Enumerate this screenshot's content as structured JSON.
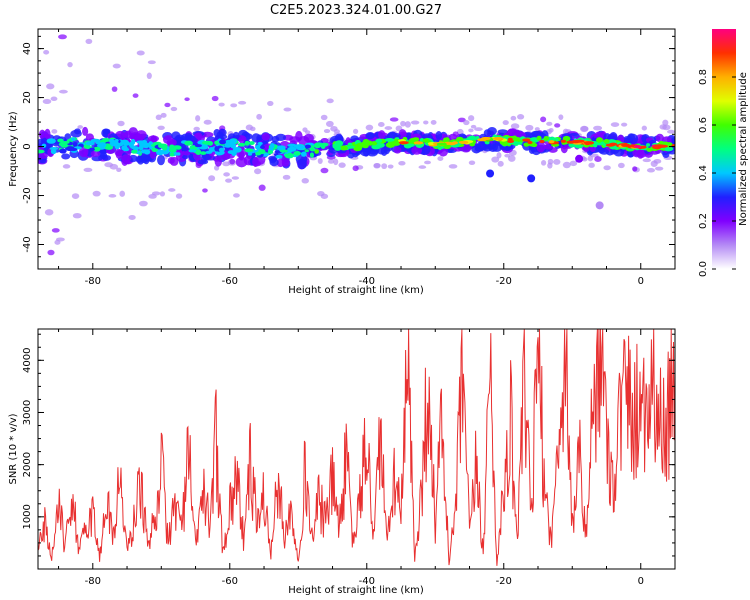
{
  "title": "C2E5.2023.324.01.00.G27",
  "chart_data": [
    {
      "type": "heatmap",
      "xlabel": "Height of straight line (km)",
      "ylabel": "Frequency (Hz)",
      "xlim": [
        -88,
        5
      ],
      "ylim": [
        -50,
        48
      ],
      "xticks": [
        -80,
        -60,
        -40,
        -20,
        0
      ],
      "yticks": [
        -40,
        -20,
        0,
        20,
        40
      ],
      "grid": false,
      "colormap": "rainbow (white-purple-blue-cyan-green-yellow-red-magenta)",
      "ridge": {
        "x": [
          -88,
          -80,
          -70,
          -60,
          -52,
          -48,
          -40,
          -35,
          -30,
          -25,
          -22,
          -15,
          -10,
          -5,
          0,
          5
        ],
        "y": [
          0,
          1,
          -1,
          0,
          -2,
          -1,
          1,
          2,
          1,
          2,
          3,
          2,
          2,
          1,
          0,
          0
        ]
      },
      "colorbar": {
        "label": "Normalized spectral amplitude",
        "range": [
          0,
          1
        ],
        "ticks": [
          "0.0",
          "0.2",
          "0.4",
          "0.6",
          "0.8"
        ],
        "colors": [
          "#ffffff",
          "#b48af5",
          "#8000ff",
          "#2020ff",
          "#00c8ff",
          "#00ff80",
          "#40ff00",
          "#e0ff00",
          "#ffb000",
          "#ff3000",
          "#ff0080"
        ]
      }
    },
    {
      "type": "line",
      "xlabel": "Height of straight line (km)",
      "ylabel": "SNR (10 * v/v)",
      "xlim": [
        -88,
        5
      ],
      "ylim": [
        0,
        4600
      ],
      "xticks": [
        -80,
        -60,
        -40,
        -20,
        0
      ],
      "yticks": [
        1000,
        2000,
        3000,
        4000
      ],
      "grid": false,
      "series": [
        {
          "color": "#e83030",
          "x": [
            -88,
            -87,
            -86,
            -85,
            -84,
            -83,
            -82,
            -81,
            -80,
            -79,
            -78,
            -77,
            -76,
            -75,
            -74,
            -73,
            -72,
            -71,
            -70,
            -69,
            -68,
            -67,
            -66,
            -65,
            -64,
            -63,
            -62,
            -61,
            -60,
            -59,
            -58,
            -57,
            -56,
            -55,
            -54,
            -53,
            -52,
            -51,
            -50,
            -49,
            -48,
            -47,
            -46,
            -45,
            -44,
            -43,
            -42,
            -41,
            -40,
            -39,
            -38,
            -37,
            -36,
            -35,
            -34,
            -33,
            -32,
            -31,
            -30,
            -29,
            -28,
            -27,
            -26,
            -25,
            -24,
            -23,
            -22,
            -21,
            -20,
            -19,
            -18,
            -17,
            -16,
            -15,
            -14,
            -13,
            -12,
            -11,
            -10,
            -9,
            -8,
            -7,
            -6,
            -5,
            -4,
            -3,
            -2,
            -1,
            0,
            1,
            2,
            3,
            4,
            5
          ],
          "y": [
            300,
            900,
            200,
            1200,
            400,
            1500,
            300,
            800,
            1100,
            200,
            1400,
            600,
            1800,
            300,
            900,
            1700,
            400,
            1000,
            2000,
            500,
            1300,
            800,
            2200,
            400,
            1500,
            900,
            2500,
            300,
            1200,
            1800,
            600,
            2000,
            900,
            1400,
            300,
            1600,
            700,
            1100,
            200,
            1900,
            600,
            1300,
            900,
            1700,
            800,
            2100,
            500,
            1300,
            2500,
            600,
            2700,
            400,
            1800,
            1000,
            3900,
            200,
            1500,
            3700,
            800,
            2900,
            100,
            1200,
            3800,
            600,
            2000,
            300,
            4000,
            100,
            1500,
            2800,
            600,
            3400,
            1000,
            4200,
            1500,
            500,
            2600,
            4500,
            800,
            2200,
            600,
            3000,
            4400,
            2600,
            1600,
            3000,
            3400,
            2800,
            3500,
            3100,
            3700,
            2600,
            3000,
            3700
          ]
        }
      ]
    }
  ]
}
